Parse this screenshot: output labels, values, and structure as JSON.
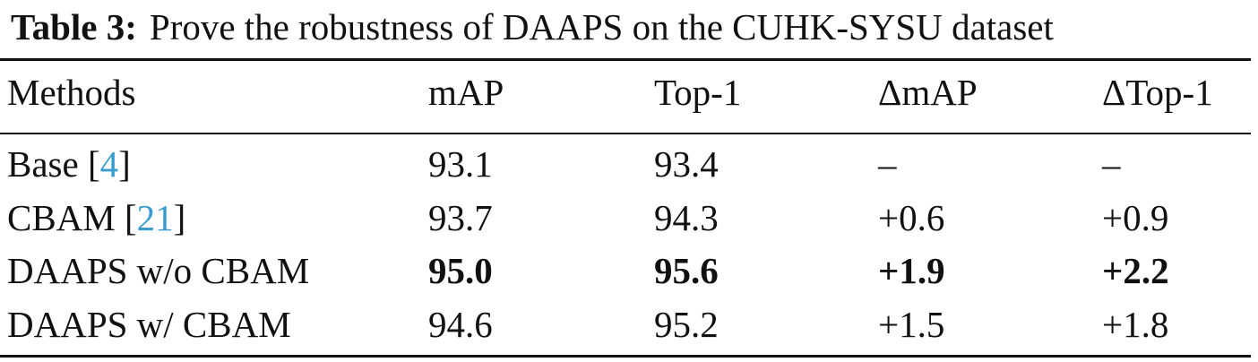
{
  "caption": {
    "label": "Table 3:",
    "text": "Prove the robustness of DAAPS on the CUHK-SYSU dataset"
  },
  "table": {
    "headers": [
      "Methods",
      "mAP",
      "Top-1",
      "ΔmAP",
      "ΔTop-1"
    ],
    "rows": [
      {
        "method": "Base",
        "cite": "4",
        "values": [
          "93.1",
          "93.4",
          "–",
          "–"
        ],
        "bold": false
      },
      {
        "method": "CBAM",
        "cite": "21",
        "values": [
          "93.7",
          "94.3",
          "+0.6",
          "+0.9"
        ],
        "bold": false
      },
      {
        "method": "DAAPS w/o CBAM",
        "cite": "",
        "values": [
          "95.0",
          "95.6",
          "+1.9",
          "+2.2"
        ],
        "bold": true
      },
      {
        "method": "DAAPS w/ CBAM",
        "cite": "",
        "values": [
          "94.6",
          "95.2",
          "+1.5",
          "+1.8"
        ],
        "bold": false
      }
    ]
  }
}
